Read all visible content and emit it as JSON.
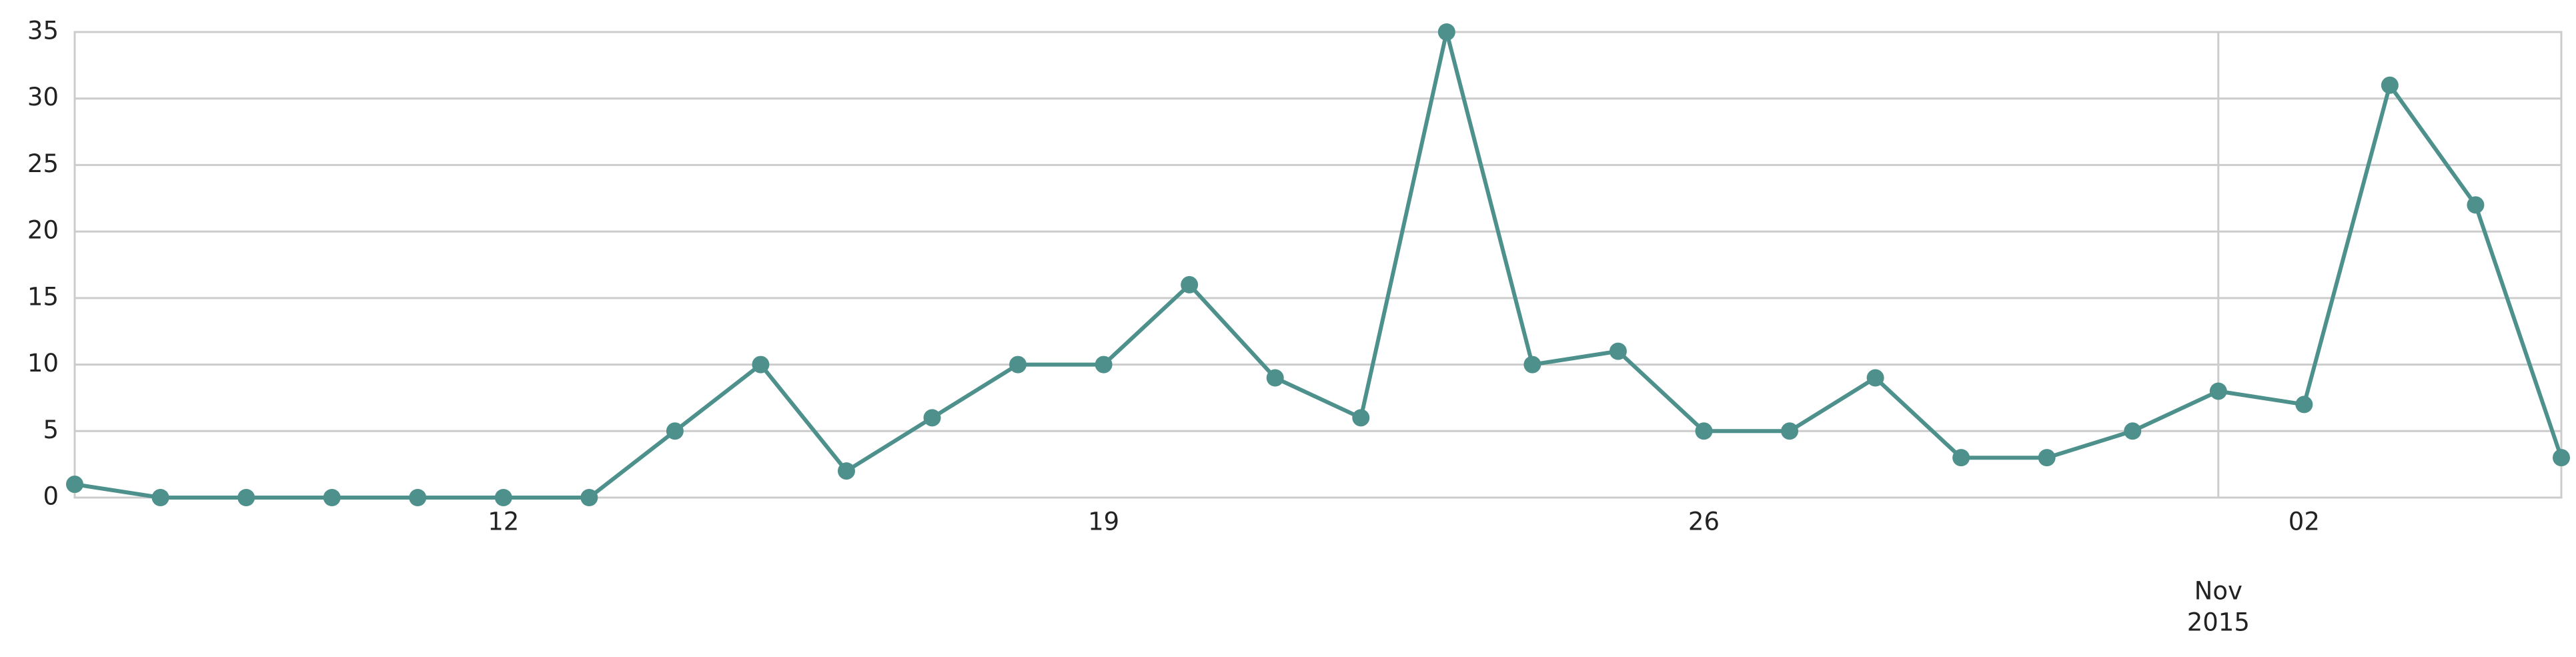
{
  "chart_data": {
    "type": "line",
    "x": [
      "2015-10-07",
      "2015-10-08",
      "2015-10-09",
      "2015-10-10",
      "2015-10-11",
      "2015-10-12",
      "2015-10-13",
      "2015-10-14",
      "2015-10-15",
      "2015-10-16",
      "2015-10-17",
      "2015-10-18",
      "2015-10-19",
      "2015-10-20",
      "2015-10-21",
      "2015-10-22",
      "2015-10-23",
      "2015-10-24",
      "2015-10-25",
      "2015-10-26",
      "2015-10-27",
      "2015-10-28",
      "2015-10-29",
      "2015-10-30",
      "2015-10-31",
      "2015-11-01",
      "2015-11-02",
      "2015-11-03",
      "2015-11-04",
      "2015-11-05"
    ],
    "series": [
      {
        "values": [
          1,
          0,
          0,
          0,
          0,
          0,
          0,
          5,
          10,
          2,
          6,
          10,
          10,
          16,
          9,
          6,
          35,
          10,
          11,
          5,
          5,
          9,
          3,
          3,
          5,
          8,
          7,
          31,
          22,
          3
        ]
      }
    ],
    "ylim": [
      0,
      35
    ],
    "xlim": [
      "2015-10-07",
      "2015-11-05"
    ],
    "y_ticks": [
      "0",
      "5",
      "10",
      "15",
      "20",
      "25",
      "30",
      "35"
    ],
    "x_ticks": [
      {
        "date": "2015-10-12",
        "label": "12"
      },
      {
        "date": "2015-10-19",
        "label": "19"
      },
      {
        "date": "2015-10-26",
        "label": "26"
      },
      {
        "date": "2015-11-02",
        "label": "02"
      }
    ],
    "x_major_tick": {
      "date": "2015-11-01",
      "label_line1": "Nov",
      "label_line2": "2015"
    },
    "line_color": "#4e918c",
    "grid": true
  }
}
